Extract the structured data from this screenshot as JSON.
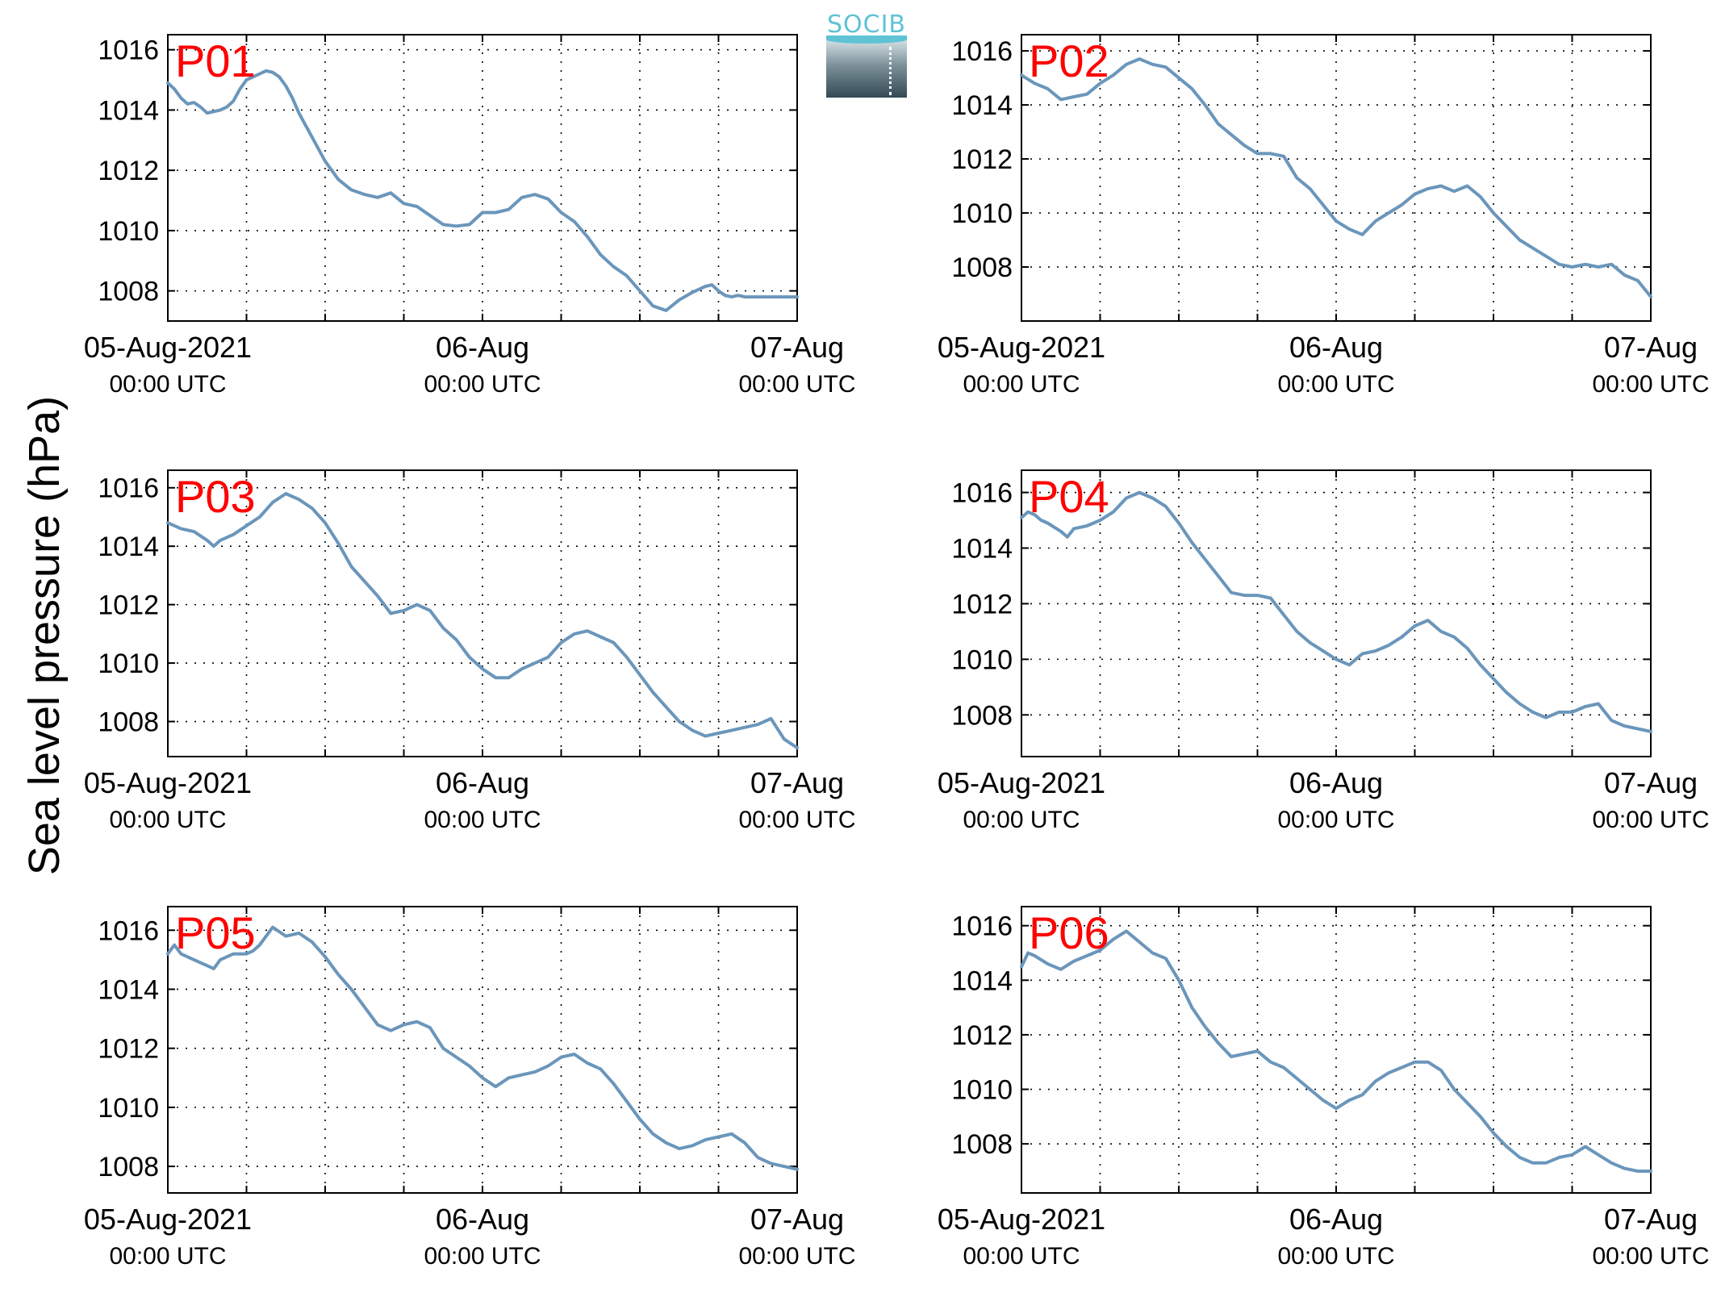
{
  "figure": {
    "ylabel": "Sea level pressure (hPa)",
    "logo": {
      "text": "SOCIB",
      "accent_color": "#5fc3d4",
      "dark_color": "#334a55"
    },
    "line_color": "#6b96bb",
    "label_color": "#ff0000"
  },
  "chart_data": [
    {
      "type": "line",
      "title": "P01",
      "x_unit": "hours since 05-Aug-2021 00:00 UTC",
      "xlim": [
        0,
        48
      ],
      "ylim": [
        1007,
        1016.5
      ],
      "xticks": [
        {
          "label": "05-Aug-2021",
          "sublabel": "00:00 UTC"
        },
        {
          "label": "06-Aug",
          "sublabel": "00:00 UTC"
        },
        {
          "label": "07-Aug",
          "sublabel": "00:00 UTC"
        }
      ],
      "yticks": [
        1008,
        1010,
        1012,
        1014,
        1016
      ],
      "grid": true,
      "series": [
        {
          "x": [
            0,
            0.5,
            1,
            1.5,
            2,
            2.5,
            3,
            3.5,
            4,
            4.5,
            5,
            5.5,
            6,
            6.5,
            7,
            7.5,
            8,
            8.5,
            9,
            9.5,
            10,
            11,
            12,
            13,
            14,
            15,
            16,
            17,
            18,
            19,
            20,
            21,
            22,
            23,
            24,
            25,
            26,
            27,
            28,
            29,
            30,
            31,
            32,
            33,
            34,
            35,
            36,
            37,
            38,
            39,
            40,
            40.5,
            41,
            41.5,
            42,
            42.5,
            43,
            43.5,
            44,
            44.5,
            45,
            45.5,
            46,
            46.5,
            47,
            47.5,
            48
          ],
          "y": [
            1014.9,
            1014.7,
            1014.4,
            1014.2,
            1014.25,
            1014.1,
            1013.9,
            1013.95,
            1014.0,
            1014.1,
            1014.3,
            1014.7,
            1015.0,
            1015.1,
            1015.2,
            1015.3,
            1015.25,
            1015.1,
            1014.8,
            1014.4,
            1013.9,
            1013.1,
            1012.3,
            1011.7,
            1011.35,
            1011.2,
            1011.1,
            1011.25,
            1010.9,
            1010.8,
            1010.5,
            1010.2,
            1010.15,
            1010.2,
            1010.6,
            1010.6,
            1010.7,
            1011.1,
            1011.2,
            1011.05,
            1010.6,
            1010.3,
            1009.8,
            1009.2,
            1008.8,
            1008.5,
            1008.0,
            1007.5,
            1007.35,
            1007.7,
            1007.95,
            1008.05,
            1008.15,
            1008.2,
            1008.0,
            1007.85,
            1007.8,
            1007.85,
            1007.8,
            1007.8,
            1007.8,
            1007.8,
            1007.8,
            1007.8,
            1007.8,
            1007.8,
            1007.8
          ]
        }
      ]
    },
    {
      "type": "line",
      "title": "P02",
      "x_unit": "hours since 05-Aug-2021 00:00 UTC",
      "xlim": [
        0,
        48
      ],
      "ylim": [
        1006,
        1016.6
      ],
      "xticks": [
        {
          "label": "05-Aug-2021",
          "sublabel": "00:00 UTC"
        },
        {
          "label": "06-Aug",
          "sublabel": "00:00 UTC"
        },
        {
          "label": "07-Aug",
          "sublabel": "00:00 UTC"
        }
      ],
      "yticks": [
        1008,
        1010,
        1012,
        1014,
        1016
      ],
      "grid": true,
      "series": [
        {
          "x": [
            0,
            1,
            2,
            3,
            4,
            5,
            6,
            7,
            8,
            9,
            10,
            11,
            12,
            13,
            14,
            15,
            16,
            17,
            18,
            19,
            20,
            21,
            22,
            23,
            24,
            25,
            26,
            27,
            28,
            29,
            30,
            31,
            32,
            33,
            34,
            35,
            36,
            37,
            38,
            39,
            40,
            41,
            42,
            43,
            44,
            45,
            46,
            47,
            48
          ],
          "y": [
            1015.1,
            1014.8,
            1014.6,
            1014.2,
            1014.3,
            1014.4,
            1014.8,
            1015.1,
            1015.5,
            1015.7,
            1015.5,
            1015.4,
            1015.0,
            1014.6,
            1014.0,
            1013.3,
            1012.9,
            1012.5,
            1012.2,
            1012.2,
            1012.1,
            1011.3,
            1010.9,
            1010.3,
            1009.7,
            1009.4,
            1009.2,
            1009.7,
            1010.0,
            1010.3,
            1010.7,
            1010.9,
            1011.0,
            1010.8,
            1011.0,
            1010.6,
            1010.0,
            1009.5,
            1009.0,
            1008.7,
            1008.4,
            1008.1,
            1008.0,
            1008.1,
            1008.0,
            1008.1,
            1007.7,
            1007.5,
            1006.9
          ]
        }
      ]
    },
    {
      "type": "line",
      "title": "P03",
      "x_unit": "hours since 05-Aug-2021 00:00 UTC",
      "xlim": [
        0,
        48
      ],
      "ylim": [
        1006.8,
        1016.6
      ],
      "xticks": [
        {
          "label": "05-Aug-2021",
          "sublabel": "00:00 UTC"
        },
        {
          "label": "06-Aug",
          "sublabel": "00:00 UTC"
        },
        {
          "label": "07-Aug",
          "sublabel": "00:00 UTC"
        }
      ],
      "yticks": [
        1008,
        1010,
        1012,
        1014,
        1016
      ],
      "grid": true,
      "series": [
        {
          "x": [
            0,
            1,
            2,
            3,
            3.5,
            4,
            5,
            6,
            7,
            8,
            9,
            10,
            11,
            12,
            13,
            14,
            15,
            16,
            17,
            18,
            19,
            20,
            21,
            22,
            23,
            24,
            25,
            26,
            27,
            28,
            29,
            30,
            31,
            32,
            33,
            34,
            35,
            36,
            37,
            38,
            39,
            40,
            41,
            42,
            43,
            44,
            45,
            46,
            47,
            48
          ],
          "y": [
            1014.8,
            1014.6,
            1014.5,
            1014.2,
            1014.0,
            1014.2,
            1014.4,
            1014.7,
            1015.0,
            1015.5,
            1015.8,
            1015.6,
            1015.3,
            1014.8,
            1014.1,
            1013.3,
            1012.8,
            1012.3,
            1011.7,
            1011.8,
            1012.0,
            1011.8,
            1011.2,
            1010.8,
            1010.2,
            1009.8,
            1009.5,
            1009.5,
            1009.8,
            1010.0,
            1010.2,
            1010.7,
            1011.0,
            1011.1,
            1010.9,
            1010.7,
            1010.2,
            1009.6,
            1009.0,
            1008.5,
            1008.0,
            1007.7,
            1007.5,
            1007.6,
            1007.7,
            1007.8,
            1007.9,
            1008.1,
            1007.4,
            1007.1
          ]
        }
      ]
    },
    {
      "type": "line",
      "title": "P04",
      "x_unit": "hours since 05-Aug-2021 00:00 UTC",
      "xlim": [
        0,
        48
      ],
      "ylim": [
        1006.5,
        1016.8
      ],
      "xticks": [
        {
          "label": "05-Aug-2021",
          "sublabel": "00:00 UTC"
        },
        {
          "label": "06-Aug",
          "sublabel": "00:00 UTC"
        },
        {
          "label": "07-Aug",
          "sublabel": "00:00 UTC"
        }
      ],
      "yticks": [
        1008,
        1010,
        1012,
        1014,
        1016
      ],
      "grid": true,
      "series": [
        {
          "x": [
            0,
            0.5,
            1,
            1.5,
            2,
            3,
            3.5,
            4,
            5,
            6,
            7,
            8,
            9,
            10,
            11,
            12,
            13,
            14,
            15,
            16,
            17,
            18,
            19,
            20,
            21,
            22,
            23,
            24,
            25,
            26,
            27,
            28,
            29,
            30,
            31,
            32,
            33,
            34,
            35,
            36,
            37,
            38,
            39,
            40,
            41,
            42,
            43,
            44,
            45,
            46,
            47,
            48
          ],
          "y": [
            1015.1,
            1015.3,
            1015.2,
            1015.0,
            1014.9,
            1014.6,
            1014.4,
            1014.7,
            1014.8,
            1015.0,
            1015.3,
            1015.8,
            1016.0,
            1015.8,
            1015.5,
            1014.9,
            1014.2,
            1013.6,
            1013.0,
            1012.4,
            1012.3,
            1012.3,
            1012.2,
            1011.6,
            1011.0,
            1010.6,
            1010.3,
            1010.0,
            1009.8,
            1010.2,
            1010.3,
            1010.5,
            1010.8,
            1011.2,
            1011.4,
            1011.0,
            1010.8,
            1010.4,
            1009.8,
            1009.3,
            1008.8,
            1008.4,
            1008.1,
            1007.9,
            1008.1,
            1008.1,
            1008.3,
            1008.4,
            1007.8,
            1007.6,
            1007.5,
            1007.4
          ]
        }
      ]
    },
    {
      "type": "line",
      "title": "P05",
      "x_unit": "hours since 05-Aug-2021 00:00 UTC",
      "xlim": [
        0,
        48
      ],
      "ylim": [
        1007.1,
        1016.8
      ],
      "xticks": [
        {
          "label": "05-Aug-2021",
          "sublabel": "00:00 UTC"
        },
        {
          "label": "06-Aug",
          "sublabel": "00:00 UTC"
        },
        {
          "label": "07-Aug",
          "sublabel": "00:00 UTC"
        }
      ],
      "yticks": [
        1008,
        1010,
        1012,
        1014,
        1016
      ],
      "grid": true,
      "series": [
        {
          "x": [
            0,
            0.5,
            1,
            2,
            3,
            3.5,
            4,
            5,
            6,
            6.5,
            7,
            8,
            9,
            10,
            11,
            12,
            13,
            14,
            15,
            16,
            17,
            18,
            19,
            20,
            21,
            22,
            23,
            24,
            25,
            26,
            27,
            28,
            29,
            30,
            31,
            32,
            33,
            34,
            35,
            36,
            37,
            38,
            39,
            40,
            41,
            42,
            43,
            44,
            45,
            46,
            47,
            48
          ],
          "y": [
            1015.2,
            1015.5,
            1015.2,
            1015.0,
            1014.8,
            1014.7,
            1015.0,
            1015.2,
            1015.2,
            1015.3,
            1015.5,
            1016.1,
            1015.8,
            1015.9,
            1015.6,
            1015.1,
            1014.5,
            1014.0,
            1013.4,
            1012.8,
            1012.6,
            1012.8,
            1012.9,
            1012.7,
            1012.0,
            1011.7,
            1011.4,
            1011.0,
            1010.7,
            1011.0,
            1011.1,
            1011.2,
            1011.4,
            1011.7,
            1011.8,
            1011.5,
            1011.3,
            1010.8,
            1010.2,
            1009.6,
            1009.1,
            1008.8,
            1008.6,
            1008.7,
            1008.9,
            1009.0,
            1009.1,
            1008.8,
            1008.3,
            1008.1,
            1008.0,
            1007.9
          ]
        }
      ]
    },
    {
      "type": "line",
      "title": "P06",
      "x_unit": "hours since 05-Aug-2021 00:00 UTC",
      "xlim": [
        0,
        48
      ],
      "ylim": [
        1006.2,
        1016.7
      ],
      "xticks": [
        {
          "label": "05-Aug-2021",
          "sublabel": "00:00 UTC"
        },
        {
          "label": "06-Aug",
          "sublabel": "00:00 UTC"
        },
        {
          "label": "07-Aug",
          "sublabel": "00:00 UTC"
        }
      ],
      "yticks": [
        1008,
        1010,
        1012,
        1014,
        1016
      ],
      "grid": true,
      "series": [
        {
          "x": [
            0,
            0.5,
            1,
            2,
            3,
            4,
            5,
            6,
            7,
            8,
            9,
            10,
            11,
            12,
            13,
            14,
            15,
            16,
            17,
            18,
            19,
            20,
            21,
            22,
            23,
            24,
            25,
            26,
            27,
            28,
            29,
            30,
            31,
            32,
            33,
            34,
            35,
            36,
            37,
            38,
            39,
            40,
            41,
            42,
            43,
            44,
            45,
            46,
            47,
            48
          ],
          "y": [
            1014.5,
            1015.0,
            1014.9,
            1014.6,
            1014.4,
            1014.7,
            1014.9,
            1015.1,
            1015.5,
            1015.8,
            1015.4,
            1015.0,
            1014.8,
            1014.0,
            1013.0,
            1012.3,
            1011.7,
            1011.2,
            1011.3,
            1011.4,
            1011.0,
            1010.8,
            1010.4,
            1010.0,
            1009.6,
            1009.3,
            1009.6,
            1009.8,
            1010.3,
            1010.6,
            1010.8,
            1011.0,
            1011.0,
            1010.7,
            1010.0,
            1009.5,
            1009.0,
            1008.4,
            1007.9,
            1007.5,
            1007.3,
            1007.3,
            1007.5,
            1007.6,
            1007.9,
            1007.6,
            1007.3,
            1007.1,
            1007.0,
            1007.0
          ]
        }
      ]
    }
  ]
}
